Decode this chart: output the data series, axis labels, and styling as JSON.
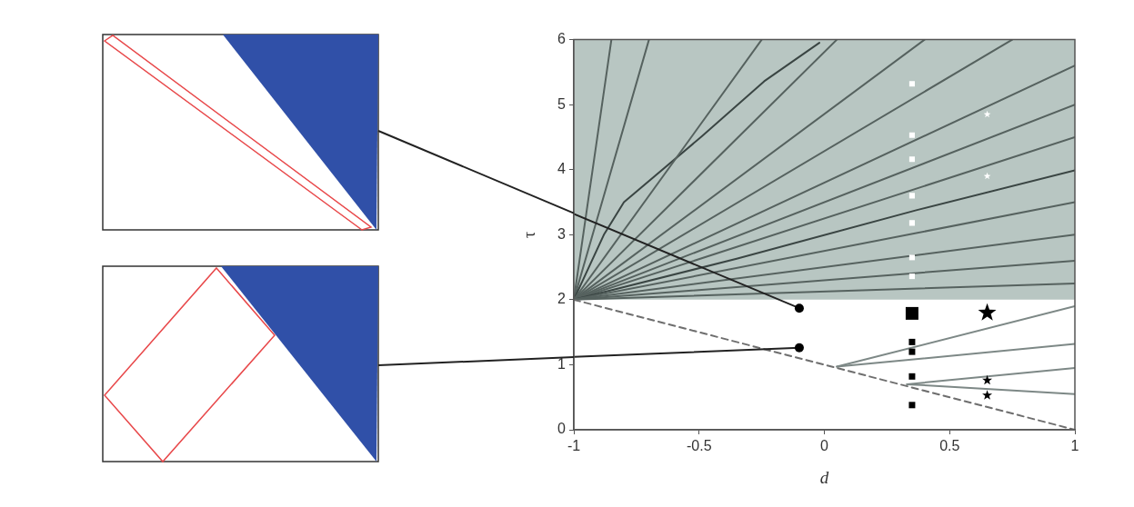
{
  "chart_data": {
    "type": "bubble",
    "xlabel": "d",
    "ylabel": "τ",
    "xlim": [
      -1,
      1
    ],
    "ylim": [
      0,
      6
    ],
    "xticks": [
      -1,
      -0.5,
      0,
      0.5,
      1
    ],
    "yticks": [
      0,
      1,
      2,
      3,
      4,
      5,
      6
    ],
    "grid": false,
    "bands": [
      {
        "axis": "y",
        "from": 2,
        "to": 6,
        "color": "#b8c6c2"
      }
    ],
    "series": [
      {
        "type": "line",
        "color": "#56625f",
        "x": [
          -1,
          -0.85
        ],
        "values": [
          2,
          6
        ]
      },
      {
        "type": "line",
        "color": "#56625f",
        "x": [
          -1,
          -0.7
        ],
        "values": [
          2,
          6
        ]
      },
      {
        "type": "line",
        "color": "#3a4543",
        "x": [
          -1,
          -0.88,
          -0.8,
          -0.49,
          -0.24,
          -0.02
        ],
        "values": [
          2,
          3,
          3.5,
          4.51,
          5.36,
          5.95
        ]
      },
      {
        "type": "line",
        "color": "#56625f",
        "x": [
          -1,
          -0.25
        ],
        "values": [
          2,
          6
        ]
      },
      {
        "type": "line",
        "color": "#56625f",
        "x": [
          -1,
          0.05
        ],
        "values": [
          2,
          6
        ]
      },
      {
        "type": "line",
        "color": "#56625f",
        "x": [
          -1,
          0.4
        ],
        "values": [
          2,
          6
        ]
      },
      {
        "type": "line",
        "color": "#56625f",
        "x": [
          -1,
          0.75
        ],
        "values": [
          2,
          6
        ]
      },
      {
        "type": "line",
        "color": "#56625f",
        "x": [
          -1,
          1
        ],
        "values": [
          2,
          5.6
        ]
      },
      {
        "type": "line",
        "color": "#56625f",
        "x": [
          -1,
          1
        ],
        "values": [
          2,
          5
        ]
      },
      {
        "type": "line",
        "color": "#56625f",
        "x": [
          -1,
          1
        ],
        "values": [
          2,
          4.5
        ]
      },
      {
        "type": "line",
        "color": "#3a4543",
        "x": [
          -1,
          -0.35,
          0.37,
          1
        ],
        "values": [
          2,
          2.63,
          3.38,
          3.99
        ]
      },
      {
        "type": "line",
        "color": "#56625f",
        "x": [
          -1,
          1
        ],
        "values": [
          2,
          3.5
        ]
      },
      {
        "type": "line",
        "color": "#56625f",
        "x": [
          -1,
          1
        ],
        "values": [
          2,
          3
        ]
      },
      {
        "type": "line",
        "color": "#56625f",
        "x": [
          -1,
          1
        ],
        "values": [
          2,
          2.6
        ]
      },
      {
        "type": "line",
        "color": "#56625f",
        "x": [
          -1,
          1
        ],
        "values": [
          2,
          2.25
        ]
      },
      {
        "type": "line",
        "color": "#7d8886",
        "x": [
          0.05,
          1
        ],
        "values": [
          0.97,
          1.9
        ]
      },
      {
        "type": "line",
        "color": "#7d8886",
        "x": [
          0.05,
          1
        ],
        "values": [
          0.97,
          1.32
        ]
      },
      {
        "type": "line",
        "color": "#7d8886",
        "x": [
          0.33,
          1
        ],
        "values": [
          0.7,
          0.95
        ]
      },
      {
        "type": "line",
        "color": "#7d8886",
        "x": [
          0.33,
          1
        ],
        "values": [
          0.7,
          0.55
        ]
      },
      {
        "type": "line",
        "color": "#6e6e6e",
        "line_style": "dashed",
        "x": [
          -1,
          1
        ],
        "values": [
          2,
          0
        ]
      },
      {
        "type": "line",
        "color": "#222222",
        "x": [
          -1,
          -0.1
        ],
        "values": [
          3.32,
          1.87
        ]
      },
      {
        "type": "line",
        "color": "#222222",
        "x": [
          -1,
          -0.1
        ],
        "values": [
          1.12,
          1.26
        ]
      },
      {
        "marker": "circle",
        "color": "#000000",
        "x": [
          -0.1,
          -0.1
        ],
        "values": [
          1.87,
          1.26
        ],
        "sizes": [
          0.4,
          0.4
        ]
      },
      {
        "marker": "square",
        "color": "#000000",
        "x": [
          0.35,
          0.35,
          0.35,
          0.35,
          0.35
        ],
        "values": [
          1.79,
          1.35,
          1.2,
          0.82,
          0.38
        ],
        "sizes": [
          1,
          0.25,
          0.25,
          0.25,
          0.25
        ]
      },
      {
        "marker": "star",
        "color": "#000000",
        "x": [
          0.65,
          0.65,
          0.65
        ],
        "values": [
          1.8,
          0.76,
          0.53
        ],
        "sizes": [
          0.66,
          0.2,
          0.2
        ]
      },
      {
        "marker": "square",
        "color": "#ffffff",
        "x": [
          0.35,
          0.35,
          0.35,
          0.35,
          0.35,
          0.35,
          0.35
        ],
        "values": [
          5.32,
          4.53,
          4.16,
          3.6,
          3.18,
          2.65,
          2.36
        ],
        "sizes": [
          0.19,
          0.19,
          0.19,
          0.19,
          0.19,
          0.19,
          0.19
        ]
      },
      {
        "marker": "star",
        "color": "#ffffff",
        "x": [
          0.65,
          0.65
        ],
        "values": [
          4.85,
          3.9
        ],
        "sizes": [
          0.1,
          0.1
        ]
      }
    ]
  }
}
